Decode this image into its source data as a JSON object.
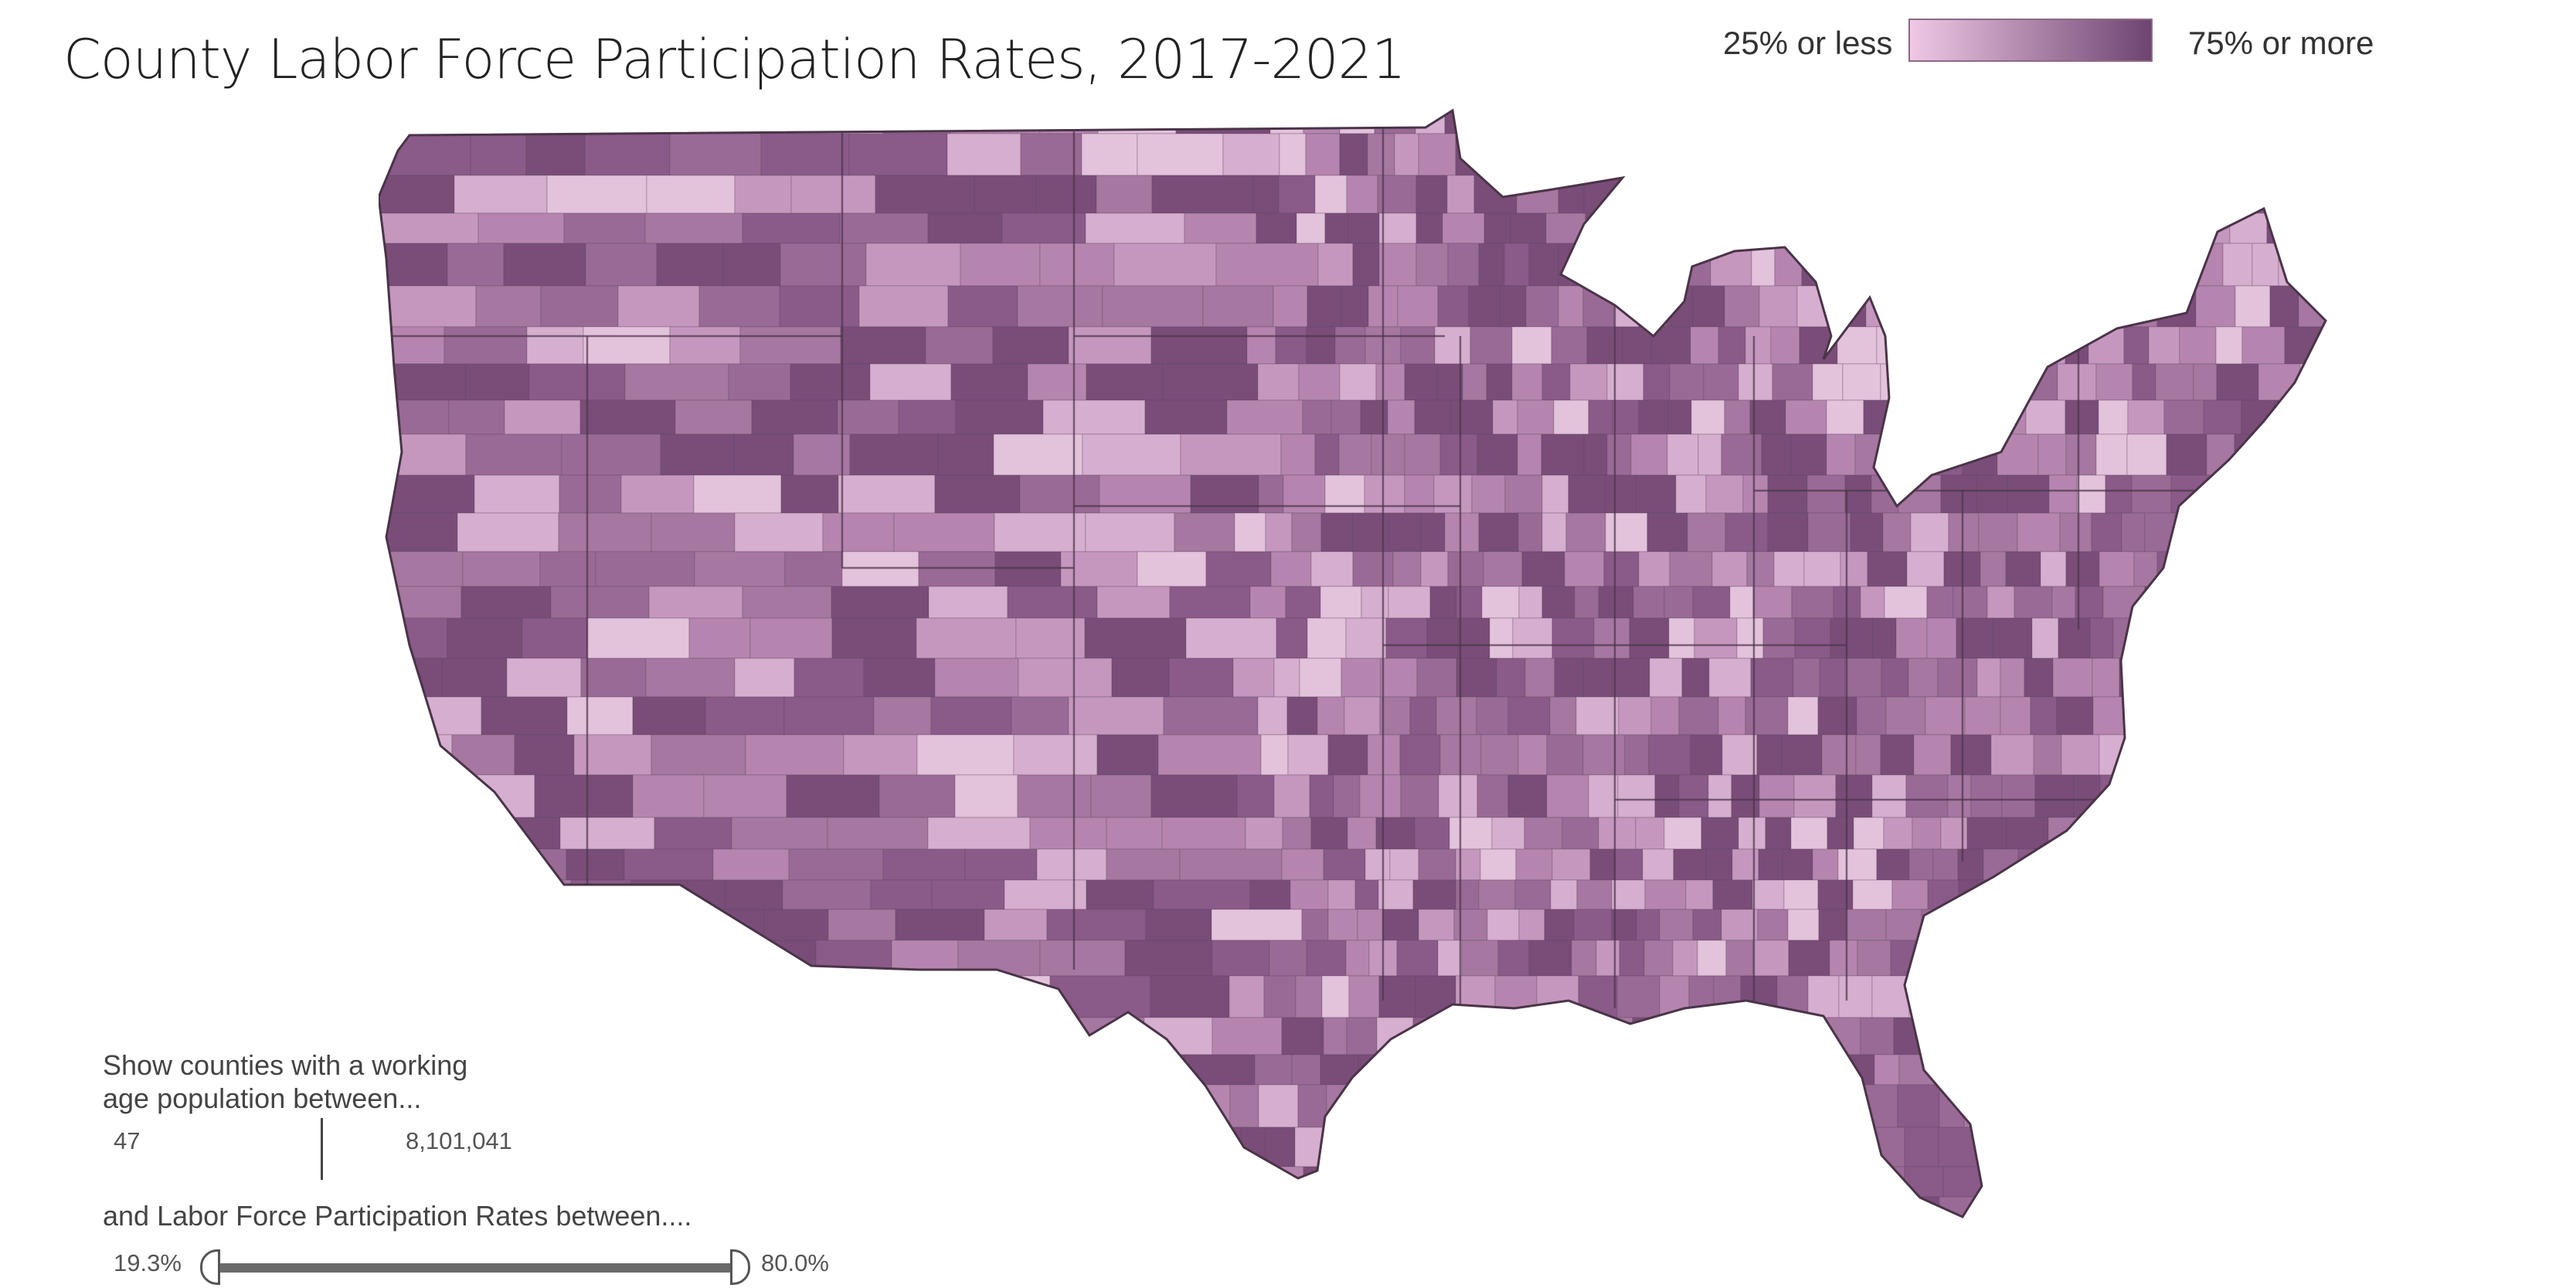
{
  "title": "County Labor Force Participation Rates, 2017-2021",
  "legend": {
    "low_label": "25% or less",
    "high_label": "75% or more",
    "low_color": "#f0c8e6",
    "high_color": "#6d4470"
  },
  "map": {
    "region": "Contiguous United States, counties",
    "fill_color_light": "#e8bfe0",
    "fill_color_mid": "#a66f9d",
    "fill_color_dark": "#7a4d79",
    "border_color": "#5a4258"
  },
  "filters": {
    "population_label_line1": "Show counties with a working",
    "population_label_line2": "age population between...",
    "population_min": "47",
    "population_max": "8,101,041",
    "rate_label": "and Labor Force Participation Rates between....",
    "rate_min": "19.3%",
    "rate_max": "80.0%"
  }
}
